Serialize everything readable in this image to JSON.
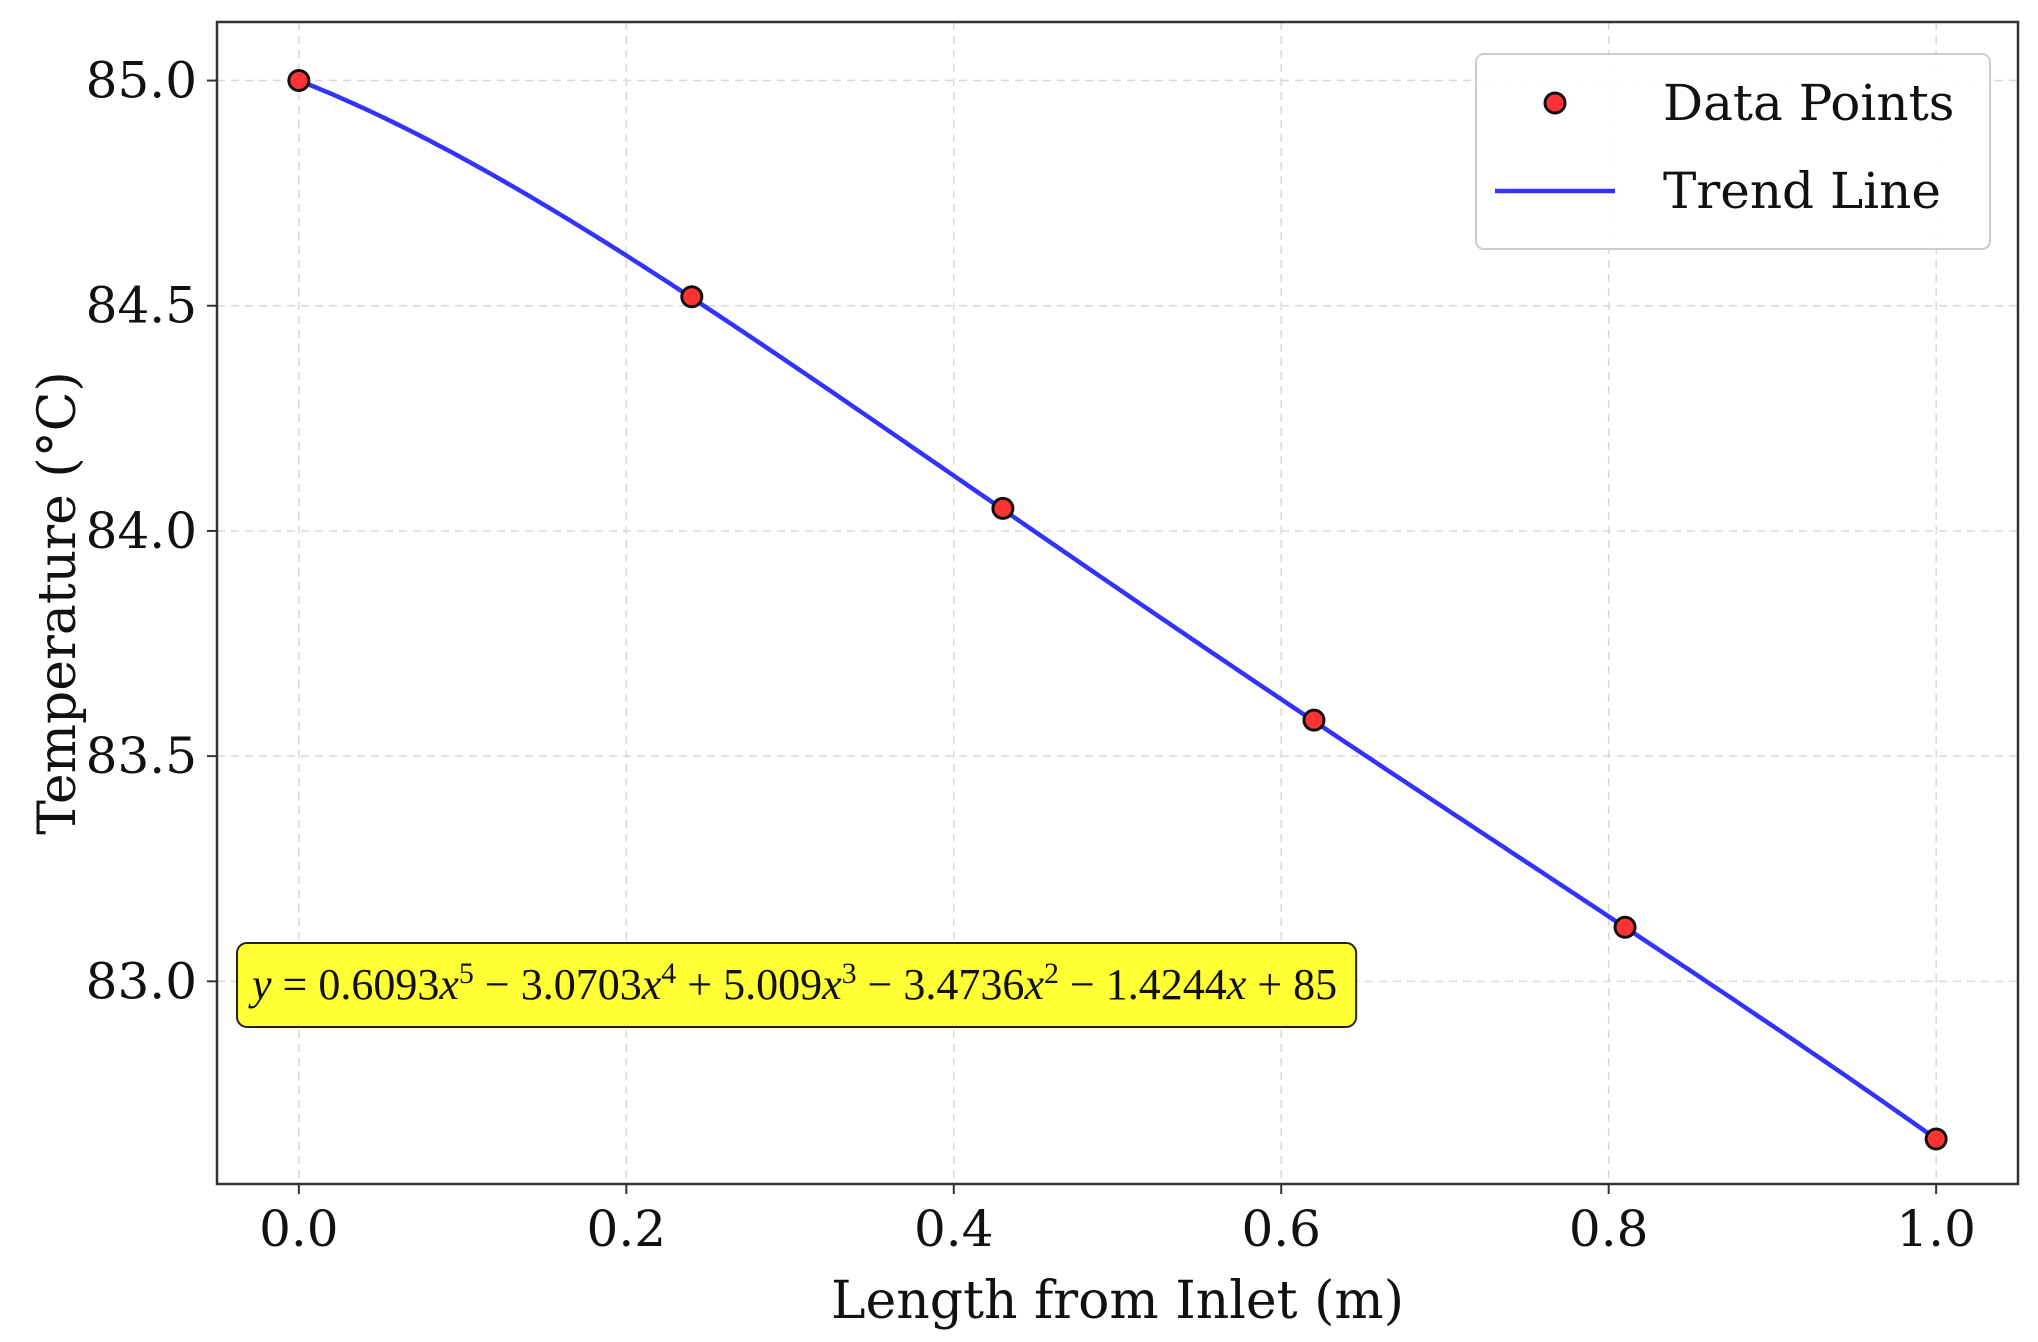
{
  "chart_data": {
    "type": "scatter",
    "title": "",
    "xlabel": "Length from Inlet (m)",
    "ylabel": "Temperature (°C)",
    "xlim": [
      -0.05,
      1.05
    ],
    "ylim": [
      82.55,
      85.13
    ],
    "x_ticks": [
      0.0,
      0.2,
      0.4,
      0.6,
      0.8,
      1.0
    ],
    "x_tick_labels": [
      "0.0",
      "0.2",
      "0.4",
      "0.6",
      "0.8",
      "1.0"
    ],
    "y_ticks": [
      83.0,
      83.5,
      84.0,
      84.5,
      85.0
    ],
    "y_tick_labels": [
      "83.0",
      "83.5",
      "84.0",
      "84.5",
      "85.0"
    ],
    "grid": true,
    "legend_position": "top-right",
    "series": [
      {
        "name": "Data Points",
        "kind": "scatter",
        "color": "#ff3333",
        "edge_color": "#111111",
        "x": [
          0.0,
          0.24,
          0.43,
          0.62,
          0.81,
          1.0
        ],
        "y": [
          85.0,
          84.52,
          84.05,
          83.58,
          83.12,
          82.65
        ]
      },
      {
        "name": "Trend Line",
        "kind": "line",
        "color": "#3333ff",
        "polynomial_coefficients_highest_first": [
          0.6093,
          -3.0703,
          5.009,
          -3.4736,
          -1.4244,
          85
        ],
        "x_range": [
          0.0,
          1.0
        ]
      }
    ],
    "annotation": {
      "background": "#ffff33",
      "position": "bottom-left",
      "parts": [
        {
          "t": "y",
          "style": "italic"
        },
        {
          "t": " = 0.6093"
        },
        {
          "t": "x",
          "style": "italic"
        },
        {
          "t": "5",
          "sup": true
        },
        {
          "t": " − 3.0703"
        },
        {
          "t": "x",
          "style": "italic"
        },
        {
          "t": "4",
          "sup": true
        },
        {
          "t": " + 5.009"
        },
        {
          "t": "x",
          "style": "italic"
        },
        {
          "t": "3",
          "sup": true
        },
        {
          "t": " − 3.4736"
        },
        {
          "t": "x",
          "style": "italic"
        },
        {
          "t": "2",
          "sup": true
        },
        {
          "t": " − 1.4244"
        },
        {
          "t": "x",
          "style": "italic"
        },
        {
          "t": " + 85"
        }
      ]
    }
  }
}
